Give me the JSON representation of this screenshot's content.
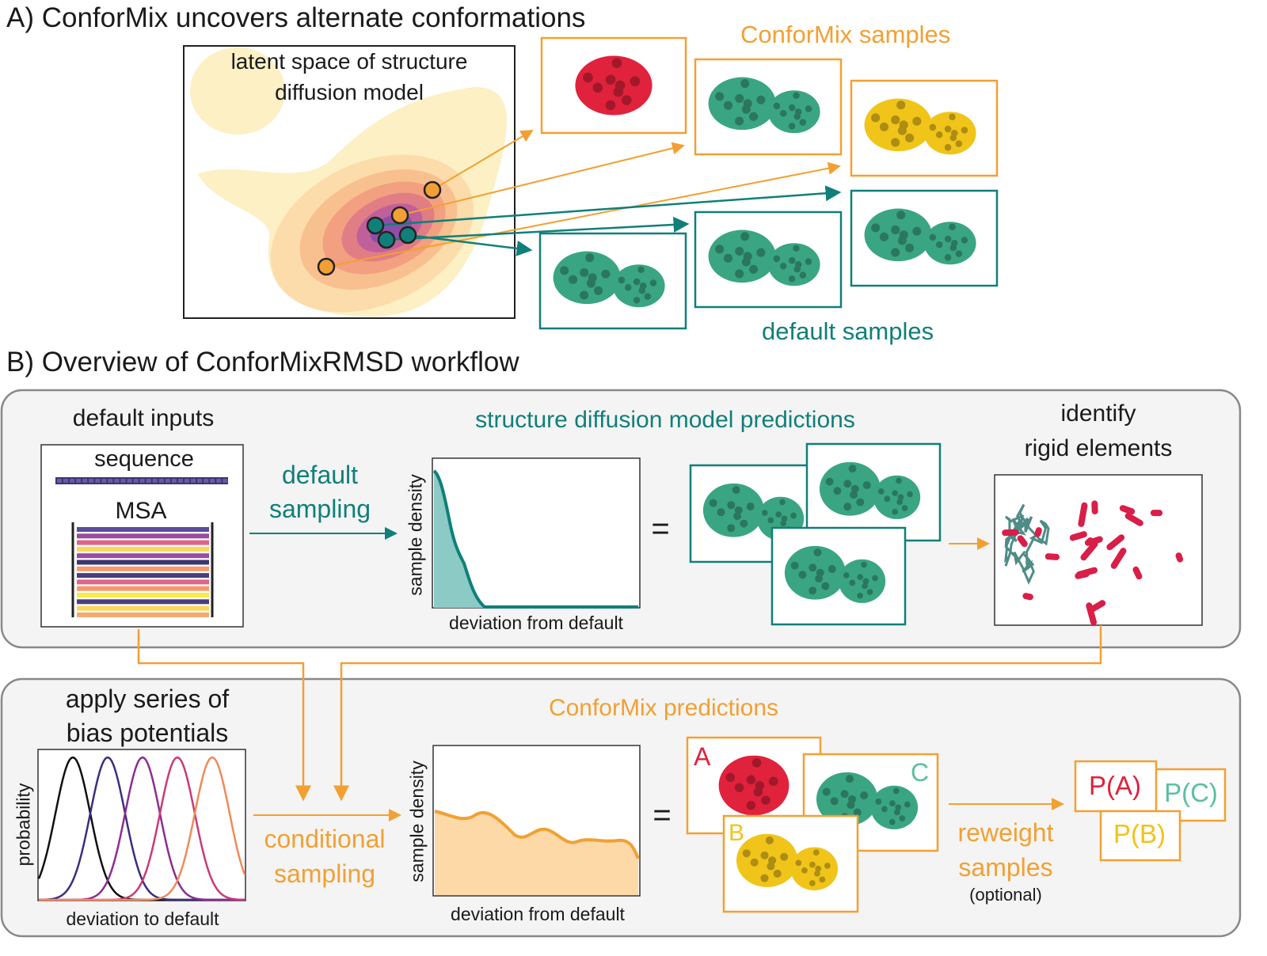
{
  "panel_a": {
    "title": "A) ConforMix uncovers alternate conformations",
    "latent_label_1": "latent space of structure",
    "latent_label_2": "diffusion model",
    "conformix_samples": "ConforMix samples",
    "default_samples": "default samples"
  },
  "panel_b": {
    "title": "B) Overview of ConforMixRMSD workflow",
    "default_inputs": "default inputs",
    "sequence": "sequence",
    "msa": "MSA",
    "default_sampling_1": "default",
    "default_sampling_2": "sampling",
    "predictions_title": "structure diffusion model predictions",
    "sample_density": "sample density",
    "deviation_from_default": "deviation from default",
    "equals": "=",
    "identify_1": "identify",
    "identify_2": "rigid elements",
    "bias_1": "apply series of",
    "bias_2": "bias potentials",
    "probability": "probability",
    "deviation_to_default": "deviation to default",
    "conditional_1": "conditional",
    "conditional_2": "sampling",
    "conformix_predictions": "ConforMix predictions",
    "label_a": "A",
    "label_b": "B",
    "label_c": "C",
    "reweight_1": "reweight",
    "reweight_2": "samples",
    "optional": "(optional)",
    "p_a": "P(A)",
    "p_b": "P(B)",
    "p_c": "P(C)"
  },
  "colors": {
    "orange": "#f2a033",
    "teal": "#107f7a",
    "protein_green": "#3aa582",
    "protein_red": "#e0223c",
    "protein_yellow": "#f0c419"
  }
}
